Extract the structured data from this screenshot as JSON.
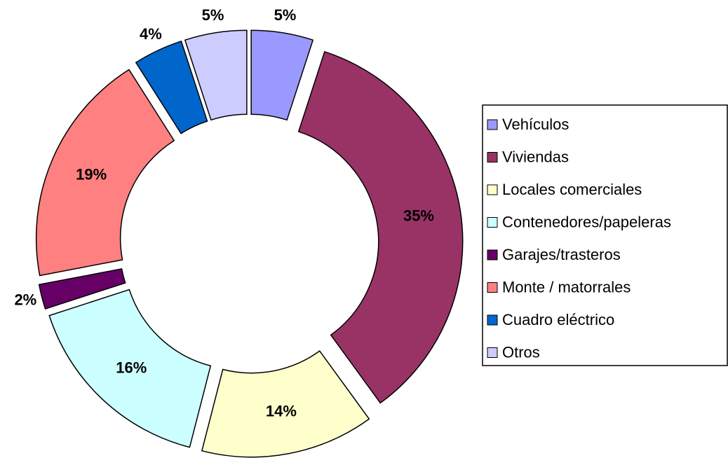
{
  "chart_data": {
    "type": "donut",
    "categories": [
      "Vehículos",
      "Viviendas",
      "Locales comerciales",
      "Contenedores/papeleras",
      "Garajes/trasteros",
      "Monte / matorrales",
      "Cuadro eléctrico",
      "Otros"
    ],
    "values": [
      5,
      35,
      14,
      16,
      2,
      19,
      4,
      5
    ],
    "value_labels": [
      "5%",
      "35%",
      "14%",
      "16%",
      "2%",
      "19%",
      "4%",
      "5%"
    ],
    "colors": [
      "#9999ff",
      "#993366",
      "#ffffcc",
      "#ccffff",
      "#660066",
      "#ff8080",
      "#0066cc",
      "#ccccff"
    ],
    "legend": "right"
  }
}
